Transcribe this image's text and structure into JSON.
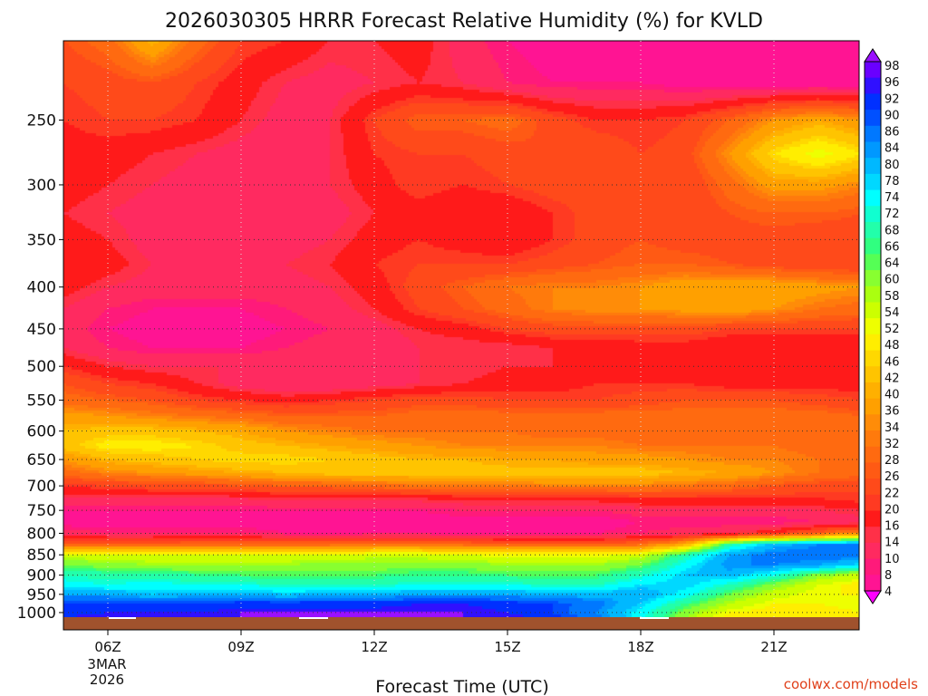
{
  "chart_data": {
    "type": "heatmap",
    "title": "2026030305 HRRR Forecast Relative Humidity (%) for KVLD",
    "xlabel": "Forecast Time (UTC)",
    "ylabel": "",
    "credit": "coolwx.com/models",
    "x_ticks": [
      "06Z",
      "09Z",
      "12Z",
      "15Z",
      "18Z",
      "21Z"
    ],
    "date_label": [
      "3MAR",
      "2026"
    ],
    "x_hours": [
      5,
      6,
      7,
      8,
      9,
      10,
      11,
      12,
      13,
      14,
      15,
      16,
      17,
      18,
      19,
      20,
      21,
      22,
      23
    ],
    "y_levels": [
      200,
      225,
      250,
      275,
      300,
      325,
      350,
      375,
      400,
      425,
      450,
      475,
      500,
      525,
      550,
      575,
      600,
      625,
      650,
      675,
      700,
      725,
      750,
      775,
      800,
      825,
      850,
      875,
      900,
      925,
      950,
      975,
      1000,
      1013
    ],
    "y_ticks": [
      250,
      300,
      350,
      400,
      450,
      500,
      550,
      600,
      650,
      700,
      750,
      800,
      850,
      900,
      950,
      1000
    ],
    "y_log_scale": true,
    "ylim": [
      1013,
      200
    ],
    "grid": true,
    "surface_color": "#a0522d",
    "colorbar": {
      "labels": [
        4,
        8,
        10,
        14,
        16,
        20,
        22,
        26,
        28,
        32,
        34,
        36,
        40,
        42,
        46,
        48,
        52,
        54,
        58,
        60,
        64,
        66,
        68,
        72,
        74,
        78,
        80,
        84,
        86,
        90,
        92,
        96,
        98
      ],
      "colors": [
        "#ff00ff",
        "#ff1493",
        "#ff1a7a",
        "#ff2a60",
        "#ff3048",
        "#ff1a1a",
        "#ff3a22",
        "#ff4a1a",
        "#ff5a14",
        "#ff6a10",
        "#ff7a0c",
        "#ff8c08",
        "#ffa000",
        "#ffb000",
        "#ffc400",
        "#ffd800",
        "#ffee00",
        "#eeff00",
        "#ccff00",
        "#aaff10",
        "#88ff30",
        "#55ff55",
        "#30ff80",
        "#22ffaa",
        "#10ffd0",
        "#00ffff",
        "#00d8ff",
        "#00b8ff",
        "#0098ff",
        "#0078ff",
        "#0050ff",
        "#0030ff",
        "#3010ff",
        "#6a00ff",
        "#9a10ff"
      ]
    },
    "rh": [
      [
        26,
        30,
        42,
        30,
        22,
        20,
        16,
        16,
        18,
        12,
        8,
        6,
        6,
        6,
        6,
        5,
        5,
        5,
        5
      ],
      [
        22,
        24,
        26,
        22,
        18,
        14,
        12,
        14,
        16,
        14,
        10,
        8,
        8,
        8,
        6,
        6,
        5,
        5,
        5
      ],
      [
        20,
        22,
        22,
        20,
        16,
        12,
        14,
        22,
        28,
        28,
        30,
        24,
        20,
        20,
        22,
        28,
        36,
        40,
        36
      ],
      [
        18,
        18,
        16,
        14,
        12,
        10,
        14,
        20,
        22,
        22,
        24,
        26,
        26,
        22,
        24,
        36,
        48,
        54,
        48
      ],
      [
        18,
        16,
        14,
        12,
        12,
        12,
        14,
        18,
        22,
        20,
        22,
        24,
        24,
        24,
        22,
        30,
        38,
        38,
        34
      ],
      [
        16,
        14,
        12,
        10,
        10,
        10,
        12,
        16,
        18,
        16,
        16,
        20,
        24,
        24,
        22,
        26,
        28,
        28,
        26
      ],
      [
        18,
        16,
        12,
        12,
        12,
        12,
        14,
        18,
        20,
        18,
        16,
        20,
        24,
        26,
        24,
        24,
        24,
        22,
        22
      ],
      [
        20,
        18,
        14,
        14,
        14,
        14,
        16,
        20,
        22,
        22,
        22,
        24,
        26,
        28,
        28,
        26,
        24,
        22,
        22
      ],
      [
        18,
        14,
        12,
        12,
        12,
        12,
        14,
        18,
        24,
        28,
        32,
        34,
        34,
        36,
        40,
        40,
        40,
        38,
        36
      ],
      [
        14,
        10,
        8,
        8,
        8,
        10,
        12,
        16,
        22,
        26,
        30,
        34,
        36,
        36,
        38,
        40,
        36,
        32,
        30
      ],
      [
        12,
        8,
        6,
        6,
        6,
        8,
        10,
        12,
        16,
        18,
        22,
        24,
        24,
        24,
        24,
        22,
        22,
        22,
        22
      ],
      [
        14,
        10,
        8,
        8,
        8,
        10,
        12,
        10,
        14,
        14,
        14,
        16,
        16,
        18,
        18,
        16,
        16,
        16,
        16
      ],
      [
        20,
        16,
        14,
        14,
        14,
        14,
        14,
        14,
        14,
        14,
        16,
        16,
        16,
        18,
        18,
        18,
        18,
        18,
        18
      ],
      [
        26,
        22,
        20,
        16,
        12,
        10,
        10,
        12,
        14,
        16,
        18,
        18,
        20,
        20,
        20,
        18,
        18,
        18,
        18
      ],
      [
        30,
        28,
        26,
        22,
        20,
        18,
        20,
        22,
        24,
        24,
        22,
        22,
        22,
        24,
        26,
        26,
        26,
        24,
        22
      ],
      [
        38,
        36,
        34,
        32,
        30,
        28,
        28,
        28,
        30,
        30,
        30,
        30,
        30,
        30,
        30,
        30,
        30,
        30,
        28
      ],
      [
        42,
        44,
        44,
        42,
        40,
        36,
        34,
        32,
        32,
        32,
        32,
        30,
        30,
        30,
        30,
        30,
        30,
        30,
        28
      ],
      [
        44,
        50,
        50,
        48,
        44,
        42,
        40,
        38,
        36,
        34,
        34,
        34,
        34,
        32,
        32,
        32,
        32,
        30,
        30
      ],
      [
        36,
        42,
        44,
        46,
        48,
        48,
        46,
        44,
        42,
        42,
        40,
        40,
        38,
        38,
        36,
        34,
        34,
        32,
        30
      ],
      [
        30,
        34,
        36,
        38,
        40,
        42,
        44,
        44,
        44,
        44,
        44,
        44,
        44,
        44,
        42,
        40,
        36,
        32,
        30
      ],
      [
        20,
        22,
        24,
        24,
        26,
        28,
        28,
        30,
        32,
        32,
        32,
        34,
        34,
        34,
        32,
        30,
        26,
        24,
        22
      ],
      [
        14,
        14,
        14,
        14,
        14,
        16,
        16,
        16,
        16,
        18,
        18,
        18,
        18,
        20,
        20,
        20,
        20,
        20,
        22
      ],
      [
        8,
        8,
        8,
        8,
        8,
        8,
        8,
        8,
        8,
        10,
        10,
        10,
        10,
        12,
        12,
        12,
        12,
        14,
        16
      ],
      [
        6,
        6,
        6,
        6,
        6,
        6,
        6,
        6,
        6,
        6,
        6,
        6,
        6,
        8,
        8,
        8,
        8,
        10,
        12
      ],
      [
        12,
        10,
        10,
        10,
        10,
        8,
        8,
        8,
        8,
        8,
        8,
        8,
        8,
        10,
        12,
        14,
        20,
        28,
        36
      ],
      [
        28,
        28,
        28,
        30,
        30,
        30,
        30,
        32,
        32,
        30,
        28,
        28,
        28,
        30,
        40,
        70,
        82,
        86,
        88
      ],
      [
        56,
        54,
        54,
        54,
        54,
        54,
        54,
        56,
        56,
        54,
        52,
        52,
        52,
        56,
        70,
        84,
        88,
        88,
        90
      ],
      [
        64,
        62,
        60,
        60,
        60,
        60,
        62,
        62,
        62,
        62,
        60,
        60,
        60,
        64,
        76,
        86,
        86,
        84,
        78
      ],
      [
        72,
        70,
        70,
        68,
        66,
        66,
        66,
        66,
        68,
        68,
        66,
        66,
        66,
        72,
        80,
        82,
        74,
        62,
        56
      ],
      [
        76,
        74,
        76,
        74,
        74,
        72,
        72,
        72,
        74,
        74,
        74,
        72,
        72,
        78,
        80,
        72,
        62,
        54,
        50
      ],
      [
        84,
        84,
        80,
        82,
        82,
        80,
        82,
        82,
        84,
        84,
        84,
        82,
        82,
        84,
        76,
        64,
        56,
        52,
        52
      ],
      [
        92,
        92,
        92,
        92,
        94,
        94,
        94,
        94,
        96,
        96,
        94,
        92,
        88,
        80,
        68,
        58,
        52,
        52,
        54
      ],
      [
        94,
        96,
        96,
        96,
        98,
        98,
        98,
        98,
        98,
        98,
        96,
        92,
        86,
        76,
        62,
        52,
        50,
        50,
        52
      ],
      [
        96,
        98,
        98,
        98,
        98,
        98,
        98,
        98,
        98,
        98,
        98,
        94,
        88,
        76,
        60,
        50,
        50,
        50,
        52
      ]
    ]
  }
}
